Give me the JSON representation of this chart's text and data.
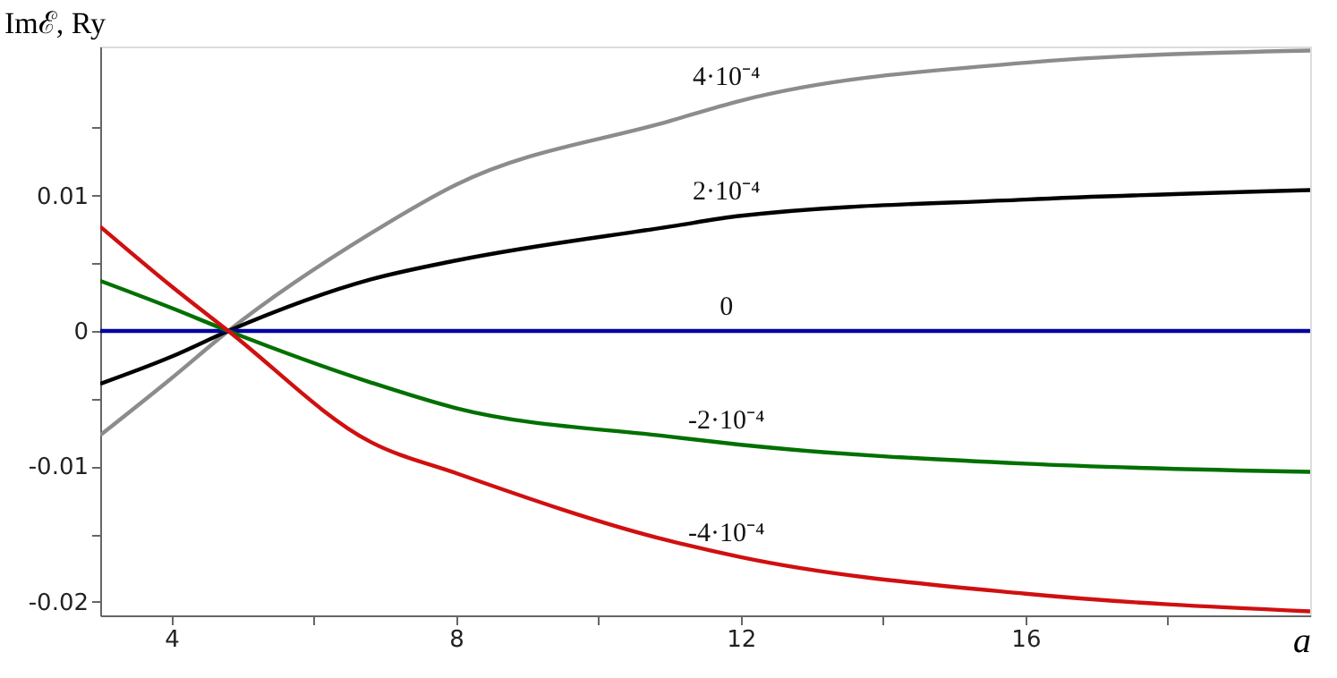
{
  "chart_data": {
    "type": "line",
    "ylabel": "Imℰ, Ry",
    "xlabel": "a",
    "xlim": [
      3,
      20
    ],
    "ylim": [
      -0.021,
      0.021
    ],
    "xticks": [
      4,
      {
        "value": 6,
        "label": null
      },
      8,
      {
        "value": 10,
        "label": null
      },
      12,
      {
        "value": 14,
        "label": null
      },
      16,
      {
        "value": 18,
        "label": null
      }
    ],
    "yticks": [
      {
        "value": -0.02,
        "label": "-0.02"
      },
      {
        "value": -0.015,
        "label": null
      },
      {
        "value": -0.01,
        "label": "-0.01"
      },
      {
        "value": -0.005,
        "label": null
      },
      0,
      {
        "value": 0.005,
        "label": null
      },
      {
        "value": 0.01,
        "label": "0.01"
      },
      {
        "value": 0.015,
        "label": null
      }
    ],
    "x": [
      3,
      4,
      4.8,
      6.8,
      8,
      11,
      12,
      16,
      20
    ],
    "grid": false,
    "legend": false,
    "marker": "none",
    "line_style": "solid",
    "series": [
      {
        "name": "4·10⁻⁴",
        "color": "#8c8c8c",
        "values": [
          -0.0077,
          -0.0035,
          0,
          0.0072,
          0.0108,
          0.0155,
          0.017,
          0.0198,
          0.0207
        ]
      },
      {
        "name": "2·10⁻⁴",
        "color": "#000000",
        "values": [
          -0.0039,
          -0.0019,
          0,
          0.0038,
          0.0052,
          0.0077,
          0.0085,
          0.0097,
          0.0104
        ]
      },
      {
        "name": "0",
        "color": "#0000a0",
        "values": [
          0,
          0,
          0,
          0,
          0,
          0,
          0,
          0,
          0
        ]
      },
      {
        "name": "-2·10⁻⁴",
        "color": "#007000",
        "values": [
          0.0037,
          0.0017,
          0,
          -0.0038,
          -0.0057,
          -0.0078,
          -0.0084,
          -0.0098,
          -0.0104
        ]
      },
      {
        "name": "-4·10⁻⁴",
        "color": "#d01010",
        "values": [
          0.0077,
          0.0033,
          0,
          -0.0082,
          -0.0105,
          -0.0155,
          -0.0167,
          -0.0194,
          -0.0207
        ]
      }
    ]
  }
}
